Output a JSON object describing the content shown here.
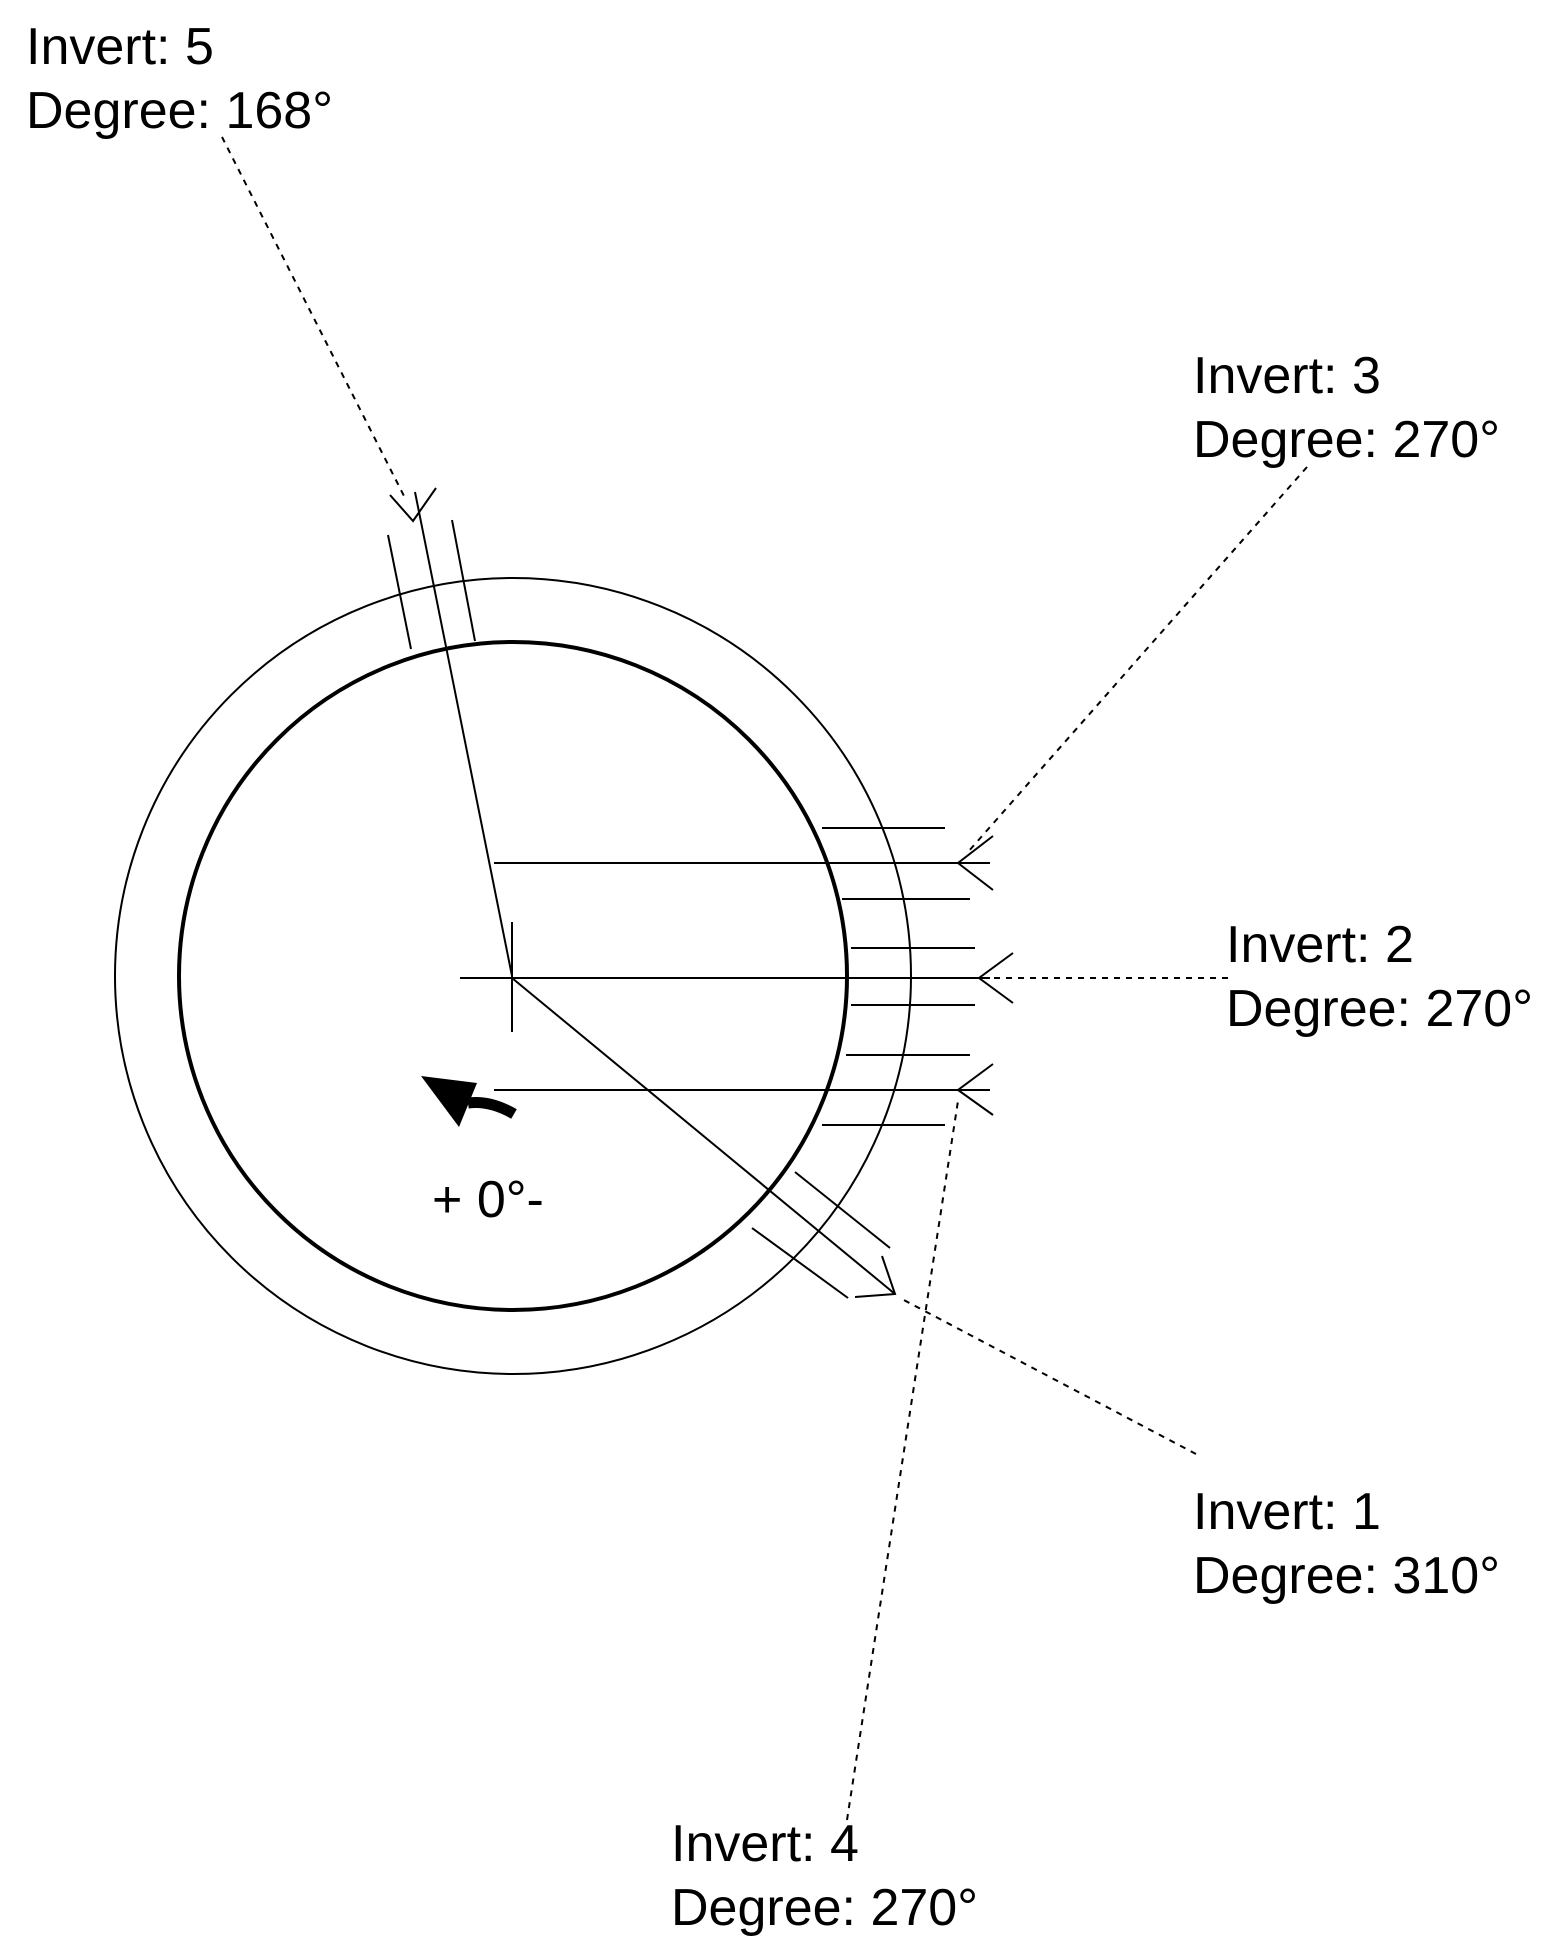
{
  "rotation_label": "+ 0°-",
  "inverts": [
    {
      "id": "invert-5",
      "invert_text": "Invert: 5",
      "degree_text": "Degree: 168°",
      "degree": 168
    },
    {
      "id": "invert-3",
      "invert_text": "Invert: 3",
      "degree_text": "Degree: 270°",
      "degree": 270
    },
    {
      "id": "invert-2",
      "invert_text": "Invert: 2",
      "degree_text": "Degree: 270°",
      "degree": 270
    },
    {
      "id": "invert-1",
      "invert_text": "Invert: 1",
      "degree_text": "Degree: 310°",
      "degree": 310
    },
    {
      "id": "invert-4",
      "invert_text": "Invert: 4",
      "degree_text": "Degree: 270°",
      "degree": 270
    }
  ],
  "colors": {
    "line": "#000000",
    "background": "#ffffff"
  }
}
